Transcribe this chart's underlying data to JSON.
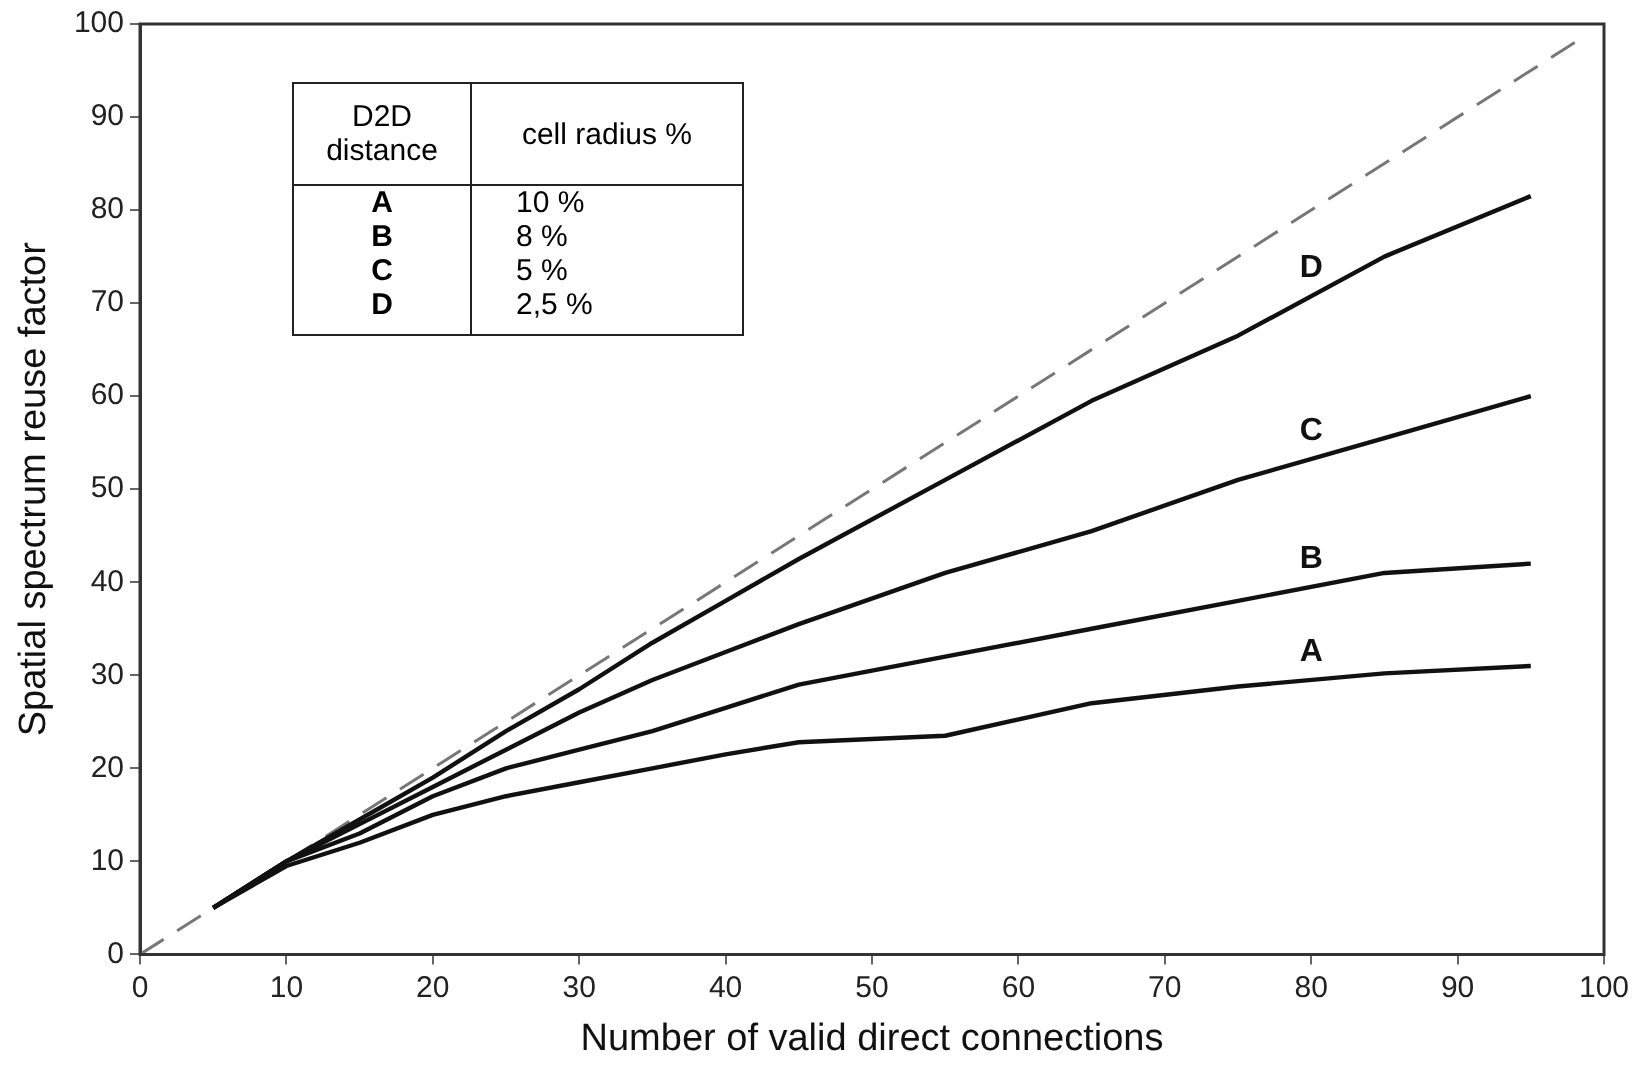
{
  "chart_data": {
    "type": "line",
    "xlabel": "Number of valid direct connections",
    "ylabel": "Spatial spectrum reuse factor",
    "x": [
      5,
      10,
      15,
      20,
      25,
      30,
      35,
      40,
      45,
      55,
      65,
      75,
      85,
      95
    ],
    "series": [
      {
        "name": "A",
        "color": "#111111",
        "values": [
          5,
          9.5,
          12,
          15,
          17,
          18.5,
          20,
          21.5,
          22.8,
          23.5,
          27,
          28.8,
          30.2,
          31
        ]
      },
      {
        "name": "B",
        "color": "#111111",
        "values": [
          5,
          10,
          13,
          17,
          20,
          22,
          24,
          26.5,
          29,
          32,
          35,
          38,
          41,
          42
        ]
      },
      {
        "name": "C",
        "color": "#111111",
        "values": [
          5,
          10,
          14,
          18,
          22,
          26,
          29.5,
          32.5,
          35.5,
          41,
          45.5,
          51,
          55.5,
          60
        ]
      },
      {
        "name": "D",
        "color": "#111111",
        "values": [
          5,
          10,
          14.5,
          19,
          24,
          28.5,
          33.5,
          38,
          42.5,
          51,
          59.5,
          66.5,
          75,
          81.5
        ]
      },
      {
        "color": "#777777",
        "x": [
          0,
          98
        ],
        "values": [
          0,
          98
        ],
        "line_style": "dashed"
      }
    ],
    "xlim": [
      0,
      100
    ],
    "xticks": [
      0,
      10,
      20,
      30,
      40,
      50,
      60,
      70,
      80,
      90,
      100
    ],
    "ylim": [
      0,
      100
    ],
    "yticks": [
      0,
      10,
      20,
      30,
      40,
      50,
      60,
      70,
      80,
      90,
      100
    ],
    "grid": false,
    "legend": false,
    "marker": "none",
    "line_style": "solid",
    "annotations": [
      "D2D distance",
      "cell radius %",
      "A",
      "10 %",
      "B",
      "8 %",
      "C",
      "5 %",
      "D",
      "2,5 %"
    ]
  }
}
